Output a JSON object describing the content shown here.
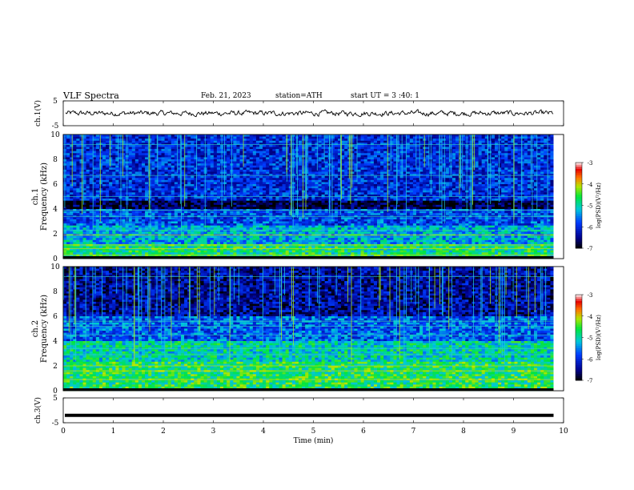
{
  "header": {
    "title": "VLF  Spectra",
    "date": "Feb. 21, 2023",
    "station": "station=ATH",
    "start": "start  UT  =    3  :40: 1"
  },
  "chart_data": [
    {
      "type": "line",
      "ylabel": "ch.1(V)",
      "ylim": [
        -5,
        5
      ],
      "yticks": [
        "5",
        "-5"
      ],
      "xlim": [
        0,
        10
      ],
      "series_color": "#000000",
      "description_level": 0,
      "end_time": 9.8
    },
    {
      "type": "heatmap",
      "ylabel_line1": "ch.1",
      "ylabel_line2": "Frequency (kHz)",
      "ylim": [
        0,
        10
      ],
      "yticks": [
        "0",
        "2",
        "4",
        "6",
        "8",
        "10"
      ],
      "xlim": [
        0,
        10
      ],
      "end_time": 9.8,
      "colorbar": {
        "label": "log(PSD)(V²/Hz)",
        "ticks": [
          "-3",
          "-4",
          "-5",
          "-6",
          "-7"
        ],
        "range": [
          -7,
          -3
        ]
      }
    },
    {
      "type": "heatmap",
      "ylabel_line1": "ch.2",
      "ylabel_line2": "Frequency (kHz)",
      "ylim": [
        0,
        10
      ],
      "yticks": [
        "0",
        "2",
        "4",
        "6",
        "8",
        "10"
      ],
      "xlim": [
        0,
        10
      ],
      "end_time": 9.8,
      "colorbar": {
        "label": "log(PSD)(V²/Hz)",
        "ticks": [
          "-3",
          "-4",
          "-5",
          "-6",
          "-7"
        ],
        "range": [
          -7,
          -3
        ]
      }
    },
    {
      "type": "line",
      "ylabel": "ch.3(V)",
      "ylim": [
        -5,
        5
      ],
      "yticks": [
        "5",
        "-5"
      ],
      "xlim": [
        0,
        10
      ],
      "constant_level": -2,
      "end_time": 9.8,
      "xlabel": "Time  (min)",
      "xticks": [
        "0",
        "1",
        "2",
        "3",
        "4",
        "5",
        "6",
        "7",
        "8",
        "9",
        "10"
      ]
    }
  ]
}
